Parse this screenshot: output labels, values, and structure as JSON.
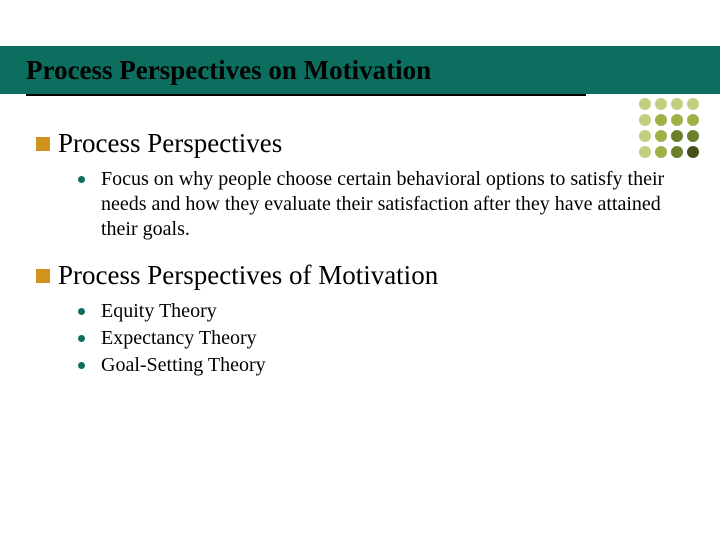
{
  "slide": {
    "title": "Process Perspectives on Motivation",
    "title_bg": "#0b6e5e",
    "title_color": "#000000",
    "underline_color": "#000000",
    "decor_dots": {
      "colors": [
        "#c2cf82",
        "#c2cf82",
        "#c2cf82",
        "#c2cf82",
        "#c2cf82",
        "#9fb044",
        "#9fb044",
        "#9fb044",
        "#c2cf82",
        "#9fb044",
        "#6c7f2a",
        "#6c7f2a",
        "#c2cf82",
        "#9fb044",
        "#6c7f2a",
        "#445018"
      ]
    },
    "bullet_color": "#d19220",
    "sub_bullet_color": "#0b6e5e",
    "sections": [
      {
        "heading": "Process Perspectives",
        "items": [
          "Focus on why people choose certain behavioral options to satisfy their needs and how they evaluate their satisfaction after they have attained their goals."
        ]
      },
      {
        "heading": "Process Perspectives of Motivation",
        "items": [
          "Equity Theory",
          "Expectancy Theory",
          "Goal-Setting Theory"
        ]
      }
    ]
  }
}
